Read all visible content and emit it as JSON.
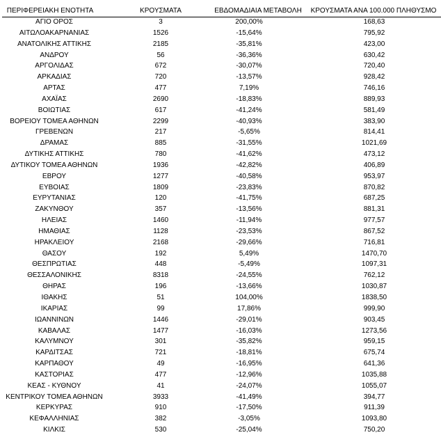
{
  "table": {
    "header": [
      "ΠΕΡΙΦΕΡΕΙΑΚΗ ΕΝΟΤΗΤΑ",
      "ΚΡΟΥΣΜΑΤΑ",
      "ΕΒΔΟΜΑΔΙΑΙΑ ΜΕΤΑΒΟΛΗ",
      "ΚΡΟΥΣΜΑΤΑ ΑΝΑ 100.000 ΠΛΗΘΥΣΜΟ"
    ],
    "rows": [
      [
        "ΑΓΙΟ ΟΡΟΣ",
        "3",
        "200,00%",
        "168,63"
      ],
      [
        "ΑΙΤΩΛΟΑΚΑΡΝΑΝΙΑΣ",
        "1526",
        "-15,64%",
        "795,92"
      ],
      [
        "ΑΝΑΤΟΛΙΚΗΣ ΑΤΤΙΚΗΣ",
        "2185",
        "-35,81%",
        "423,00"
      ],
      [
        "ΑΝΔΡΟΥ",
        "56",
        "-36,36%",
        "630,42"
      ],
      [
        "ΑΡΓΟΛΙΔΑΣ",
        "672",
        "-30,07%",
        "720,40"
      ],
      [
        "ΑΡΚΑΔΙΑΣ",
        "720",
        "-13,57%",
        "928,42"
      ],
      [
        "ΑΡΤΑΣ",
        "477",
        "7,19%",
        "746,16"
      ],
      [
        "ΑΧΑΪΑΣ",
        "2690",
        "-18,83%",
        "889,93"
      ],
      [
        "ΒΟΙΩΤΙΑΣ",
        "617",
        "-41,24%",
        "581,49"
      ],
      [
        "ΒΟΡΕΙΟΥ ΤΟΜΕΑ ΑΘΗΝΩΝ",
        "2299",
        "-40,93%",
        "383,90"
      ],
      [
        "ΓΡΕΒΕΝΩΝ",
        "217",
        "-5,65%",
        "814,41"
      ],
      [
        "ΔΡΑΜΑΣ",
        "885",
        "-31,55%",
        "1021,69"
      ],
      [
        "ΔΥΤΙΚΗΣ ΑΤΤΙΚΗΣ",
        "780",
        "-41,62%",
        "473,12"
      ],
      [
        "ΔΥΤΙΚΟΥ ΤΟΜΕΑ ΑΘΗΝΩΝ",
        "1936",
        "-42,82%",
        "406,89"
      ],
      [
        "ΕΒΡΟΥ",
        "1277",
        "-40,58%",
        "953,97"
      ],
      [
        "ΕΥΒΟΙΑΣ",
        "1809",
        "-23,83%",
        "870,82"
      ],
      [
        "ΕΥΡΥΤΑΝΙΑΣ",
        "120",
        "-41,75%",
        "687,25"
      ],
      [
        "ΖΑΚΥΝΘΟΥ",
        "357",
        "-13,56%",
        "881,31"
      ],
      [
        "ΗΛΕΙΑΣ",
        "1460",
        "-11,94%",
        "977,57"
      ],
      [
        "ΗΜΑΘΙΑΣ",
        "1128",
        "-23,53%",
        "867,52"
      ],
      [
        "ΗΡΑΚΛΕΙΟΥ",
        "2168",
        "-29,66%",
        "716,81"
      ],
      [
        "ΘΑΣΟΥ",
        "192",
        "5,49%",
        "1470,70"
      ],
      [
        "ΘΕΣΠΡΩΤΙΑΣ",
        "448",
        "-5,49%",
        "1097,31"
      ],
      [
        "ΘΕΣΣΑΛΟΝΙΚΗΣ",
        "8318",
        "-24,55%",
        "762,12"
      ],
      [
        "ΘΗΡΑΣ",
        "196",
        "-13,66%",
        "1030,87"
      ],
      [
        "ΙΘΑΚΗΣ",
        "51",
        "104,00%",
        "1838,50"
      ],
      [
        "ΙΚΑΡΙΑΣ",
        "99",
        "17,86%",
        "999,90"
      ],
      [
        "ΙΩΑΝΝΙΝΩΝ",
        "1446",
        "-29,01%",
        "903,45"
      ],
      [
        "ΚΑΒΑΛΑΣ",
        "1477",
        "-16,03%",
        "1273,56"
      ],
      [
        "ΚΑΛΥΜΝΟΥ",
        "301",
        "-35,82%",
        "959,15"
      ],
      [
        "ΚΑΡΔΙΤΣΑΣ",
        "721",
        "-18,81%",
        "675,74"
      ],
      [
        "ΚΑΡΠΑΘΟΥ",
        "49",
        "-16,95%",
        "641,36"
      ],
      [
        "ΚΑΣΤΟΡΙΑΣ",
        "477",
        "-12,96%",
        "1035,88"
      ],
      [
        "ΚΕΑΣ - ΚΥΘΝΟΥ",
        "41",
        "-24,07%",
        "1055,07"
      ],
      [
        "ΚΕΝΤΡΙΚΟΥ ΤΟΜΕΑ ΑΘΗΝΩΝ",
        "3933",
        "-41,49%",
        "394,77"
      ],
      [
        "ΚΕΡΚΥΡΑΣ",
        "910",
        "-17,50%",
        "911,39"
      ],
      [
        "ΚΕΦΑΛΛΗΝΙΑΣ",
        "382",
        "-3,05%",
        "1093,80"
      ],
      [
        "ΚΙΛΚΙΣ",
        "530",
        "-25,04%",
        "750,20"
      ]
    ]
  }
}
